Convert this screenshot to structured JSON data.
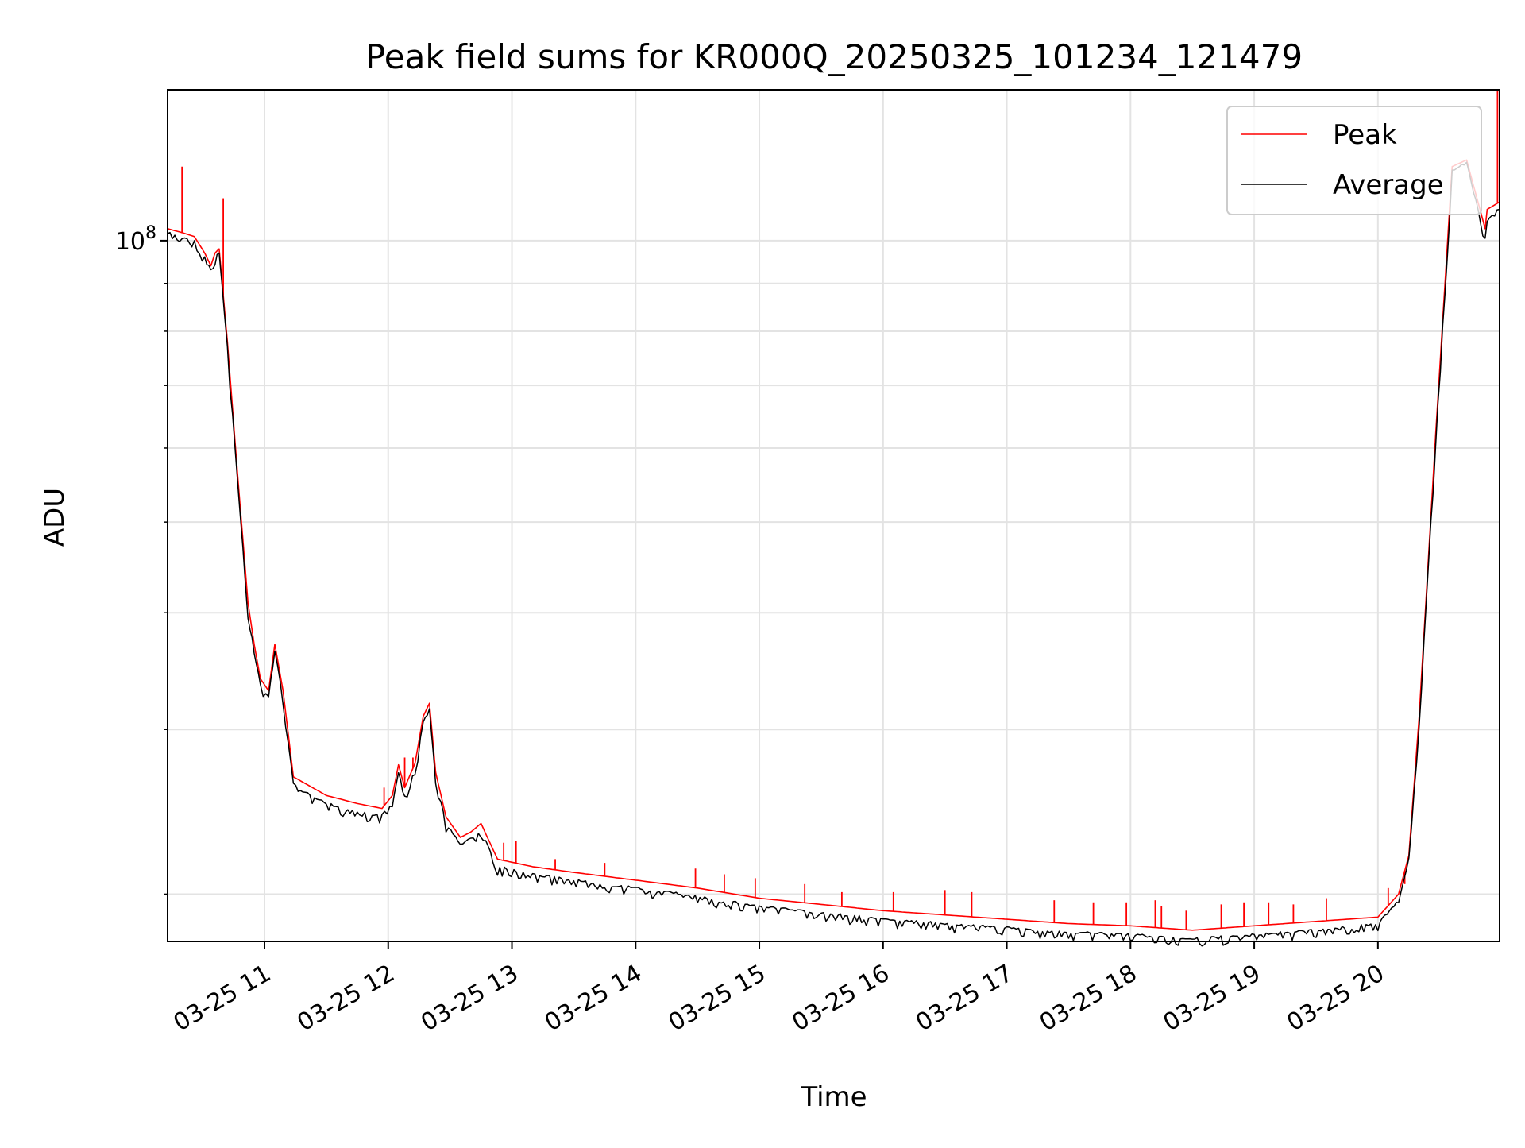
{
  "chart_data": {
    "type": "line",
    "title": "Peak field sums for KR000Q_20250325_101234_121479",
    "xlabel": "Time",
    "ylabel": "ADU",
    "x_axis": {
      "kind": "datetime",
      "range": [
        "2025-03-25 10:13",
        "2025-03-25 20:59"
      ],
      "ticks": [
        "2025-03-25 11:00",
        "2025-03-25 12:00",
        "2025-03-25 13:00",
        "2025-03-25 14:00",
        "2025-03-25 15:00",
        "2025-03-25 16:00",
        "2025-03-25 17:00",
        "2025-03-25 18:00",
        "2025-03-25 19:00",
        "2025-03-25 20:00"
      ],
      "tick_labels": [
        "03-25 11",
        "03-25 12",
        "03-25 13",
        "03-25 14",
        "03-25 15",
        "03-25 16",
        "03-25 17",
        "03-25 18",
        "03-25 19",
        "03-25 20"
      ]
    },
    "y_axis": {
      "scale": "log",
      "range": [
        17800000,
        145000000
      ],
      "major_ticks": [
        100000000
      ],
      "major_tick_labels": [
        "10",
        "8"
      ],
      "minor_ticks": [
        20000000,
        30000000,
        40000000,
        50000000,
        60000000,
        70000000,
        80000000,
        90000000
      ]
    },
    "grid": true,
    "legend_position": "upper right",
    "series": [
      {
        "name": "Peak",
        "color": "#ff0000",
        "x": [
          "2025-03-25 10:13",
          "2025-03-25 10:20",
          "2025-03-25 10:26",
          "2025-03-25 10:31",
          "2025-03-25 10:34",
          "2025-03-25 10:36",
          "2025-03-25 10:38",
          "2025-03-25 10:42",
          "2025-03-25 10:47",
          "2025-03-25 10:52",
          "2025-03-25 10:55",
          "2025-03-25 10:58",
          "2025-03-25 11:02",
          "2025-03-25 11:05",
          "2025-03-25 11:09",
          "2025-03-25 11:14",
          "2025-03-25 11:30",
          "2025-03-25 11:45",
          "2025-03-25 11:57",
          "2025-03-25 12:02",
          "2025-03-25 12:05",
          "2025-03-25 12:08",
          "2025-03-25 12:13",
          "2025-03-25 12:17",
          "2025-03-25 12:20",
          "2025-03-25 12:23",
          "2025-03-25 12:28",
          "2025-03-25 12:35",
          "2025-03-25 12:40",
          "2025-03-25 12:45",
          "2025-03-25 12:53",
          "2025-03-25 13:10",
          "2025-03-25 13:30",
          "2025-03-25 14:00",
          "2025-03-25 14:30",
          "2025-03-25 15:00",
          "2025-03-25 15:30",
          "2025-03-25 16:00",
          "2025-03-25 16:30",
          "2025-03-25 17:00",
          "2025-03-25 17:30",
          "2025-03-25 18:00",
          "2025-03-25 18:30",
          "2025-03-25 19:00",
          "2025-03-25 19:30",
          "2025-03-25 20:00",
          "2025-03-25 20:10",
          "2025-03-25 20:15",
          "2025-03-25 20:20",
          "2025-03-25 20:28",
          "2025-03-25 20:36",
          "2025-03-25 20:43",
          "2025-03-25 20:52",
          "2025-03-25 20:53",
          "2025-03-25 20:59"
        ],
        "values": [
          103000000,
          102000000,
          101000000,
          97000000,
          94000000,
          97000000,
          98000000,
          78000000,
          56000000,
          41000000,
          37000000,
          34000000,
          33000000,
          37000000,
          33000000,
          26700000,
          25500000,
          25000000,
          24700000,
          25500000,
          27500000,
          26000000,
          27600000,
          31000000,
          32000000,
          27000000,
          24200000,
          23000000,
          23300000,
          23800000,
          21800000,
          21400000,
          21100000,
          20700000,
          20300000,
          19800000,
          19500000,
          19200000,
          19000000,
          18800000,
          18600000,
          18500000,
          18300000,
          18500000,
          18700000,
          18900000,
          20000000,
          22000000,
          31000000,
          62000000,
          120000000,
          122000000,
          103000000,
          108000000,
          110000000
        ],
        "spikes": [
          {
            "x": "2025-03-25 10:20",
            "value": 120000000
          },
          {
            "x": "2025-03-25 10:40",
            "value": 111000000
          },
          {
            "x": "2025-03-25 11:58",
            "value": 26000000
          },
          {
            "x": "2025-03-25 12:08",
            "value": 28000000
          },
          {
            "x": "2025-03-25 12:12",
            "value": 28000000
          },
          {
            "x": "2025-03-25 12:56",
            "value": 22700000
          },
          {
            "x": "2025-03-25 13:02",
            "value": 22800000
          },
          {
            "x": "2025-03-25 13:21",
            "value": 21800000
          },
          {
            "x": "2025-03-25 13:45",
            "value": 21600000
          },
          {
            "x": "2025-03-25 14:29",
            "value": 21300000
          },
          {
            "x": "2025-03-25 14:43",
            "value": 21000000
          },
          {
            "x": "2025-03-25 14:58",
            "value": 20800000
          },
          {
            "x": "2025-03-25 15:22",
            "value": 20500000
          },
          {
            "x": "2025-03-25 15:40",
            "value": 20100000
          },
          {
            "x": "2025-03-25 16:05",
            "value": 20100000
          },
          {
            "x": "2025-03-25 16:30",
            "value": 20200000
          },
          {
            "x": "2025-03-25 16:43",
            "value": 20100000
          },
          {
            "x": "2025-03-25 17:23",
            "value": 19700000
          },
          {
            "x": "2025-03-25 17:42",
            "value": 19600000
          },
          {
            "x": "2025-03-25 17:58",
            "value": 19600000
          },
          {
            "x": "2025-03-25 18:12",
            "value": 19700000
          },
          {
            "x": "2025-03-25 18:15",
            "value": 19400000
          },
          {
            "x": "2025-03-25 18:27",
            "value": 19200000
          },
          {
            "x": "2025-03-25 18:44",
            "value": 19500000
          },
          {
            "x": "2025-03-25 18:55",
            "value": 19600000
          },
          {
            "x": "2025-03-25 19:07",
            "value": 19600000
          },
          {
            "x": "2025-03-25 19:19",
            "value": 19500000
          },
          {
            "x": "2025-03-25 19:35",
            "value": 19800000
          },
          {
            "x": "2025-03-25 20:05",
            "value": 20300000
          },
          {
            "x": "2025-03-25 20:13",
            "value": 20500000
          },
          {
            "x": "2025-03-25 20:58",
            "value": 145000000
          }
        ]
      },
      {
        "name": "Average",
        "color": "#000000",
        "x": [
          "2025-03-25 10:13",
          "2025-03-25 10:20",
          "2025-03-25 10:26",
          "2025-03-25 10:31",
          "2025-03-25 10:34",
          "2025-03-25 10:36",
          "2025-03-25 10:38",
          "2025-03-25 10:42",
          "2025-03-25 10:47",
          "2025-03-25 10:52",
          "2025-03-25 10:55",
          "2025-03-25 10:58",
          "2025-03-25 11:02",
          "2025-03-25 11:05",
          "2025-03-25 11:09",
          "2025-03-25 11:14",
          "2025-03-25 11:30",
          "2025-03-25 11:45",
          "2025-03-25 11:57",
          "2025-03-25 12:02",
          "2025-03-25 12:05",
          "2025-03-25 12:08",
          "2025-03-25 12:13",
          "2025-03-25 12:17",
          "2025-03-25 12:20",
          "2025-03-25 12:23",
          "2025-03-25 12:28",
          "2025-03-25 12:35",
          "2025-03-25 12:40",
          "2025-03-25 12:45",
          "2025-03-25 12:53",
          "2025-03-25 13:10",
          "2025-03-25 13:30",
          "2025-03-25 14:00",
          "2025-03-25 14:30",
          "2025-03-25 15:00",
          "2025-03-25 15:30",
          "2025-03-25 16:00",
          "2025-03-25 16:30",
          "2025-03-25 17:00",
          "2025-03-25 17:30",
          "2025-03-25 18:00",
          "2025-03-25 18:30",
          "2025-03-25 19:00",
          "2025-03-25 19:30",
          "2025-03-25 20:00",
          "2025-03-25 20:10",
          "2025-03-25 20:15",
          "2025-03-25 20:20",
          "2025-03-25 20:28",
          "2025-03-25 20:36",
          "2025-03-25 20:43",
          "2025-03-25 20:52",
          "2025-03-25 20:53",
          "2025-03-25 20:59"
        ],
        "values": [
          102000000,
          101000000,
          100000000,
          96000000,
          93000000,
          96000000,
          97000000,
          77000000,
          55000000,
          40000000,
          36500000,
          33500000,
          32500000,
          36500000,
          32500000,
          26200000,
          25000000,
          24500000,
          24300000,
          25000000,
          27000000,
          25500000,
          27200000,
          30500000,
          31500000,
          26500000,
          23800000,
          22600000,
          22900000,
          23400000,
          21400000,
          21000000,
          20700000,
          20300000,
          19900000,
          19400000,
          19100000,
          18800000,
          18600000,
          18400000,
          18200000,
          18100000,
          17900000,
          18100000,
          18300000,
          18600000,
          19700000,
          21800000,
          30500000,
          61000000,
          119000000,
          121000000,
          101000000,
          106000000,
          108000000
        ]
      }
    ]
  }
}
